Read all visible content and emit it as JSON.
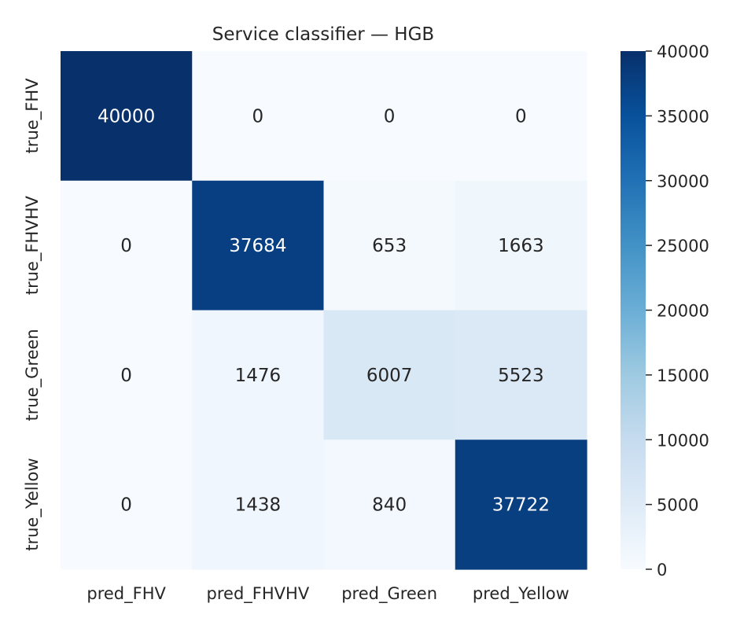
{
  "chart_data": {
    "type": "heatmap",
    "title": "Service classifier — HGB",
    "row_labels": [
      "true_FHV",
      "true_FHVHV",
      "true_Green",
      "true_Yellow"
    ],
    "col_labels": [
      "pred_FHV",
      "pred_FHVHV",
      "pred_Green",
      "pred_Yellow"
    ],
    "values": [
      [
        40000,
        0,
        0,
        0
      ],
      [
        0,
        37684,
        653,
        1663
      ],
      [
        0,
        1476,
        6007,
        5523
      ],
      [
        0,
        1438,
        840,
        37722
      ]
    ],
    "value_labels": [
      [
        "40000",
        "0",
        "0",
        "0"
      ],
      [
        "0",
        "37684",
        "653",
        "1663"
      ],
      [
        "0",
        "1476",
        "6007",
        "5523"
      ],
      [
        "0",
        "1438",
        "840",
        "37722"
      ]
    ],
    "colormap": "Blues",
    "colorbar": {
      "range": [
        0,
        40000
      ],
      "ticks": [
        0,
        5000,
        10000,
        15000,
        20000,
        25000,
        30000,
        35000,
        40000
      ],
      "tick_labels": [
        "0",
        "5000",
        "10000",
        "15000",
        "20000",
        "25000",
        "30000",
        "35000",
        "40000"
      ]
    },
    "grid": false
  }
}
